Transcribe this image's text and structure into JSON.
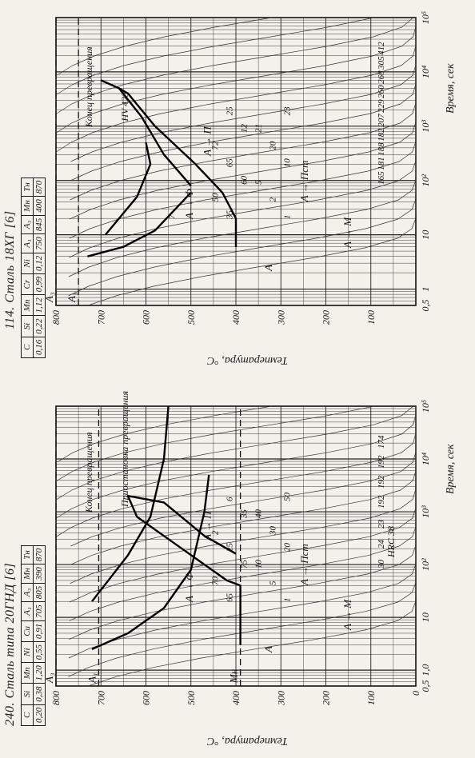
{
  "chart_data": [
    {
      "type": "line",
      "title": "240. Сталь типа 20ГНД [6]",
      "composition": {
        "headers": [
          "C",
          "Si",
          "Mn",
          "Ni",
          "Cu",
          "A₁",
          "A₃",
          "Mн",
          "Tн"
        ],
        "values": [
          "0,20",
          "0,38",
          "1,20",
          "0,55",
          "0,91",
          "705",
          "805",
          "390",
          "870"
        ]
      },
      "xlabel": "Время, сек",
      "ylabel": "Температура, °С",
      "xscale": "log",
      "xlim": [
        0.5,
        100000
      ],
      "ylim": [
        0,
        800
      ],
      "x_ticks": [
        "0,5",
        "1,0",
        "10",
        "10²",
        "10³",
        "10⁴",
        "10⁵"
      ],
      "x_tick_values": [
        0.5,
        1,
        10,
        100,
        1000,
        10000,
        100000
      ],
      "y_ticks": [
        0,
        100,
        200,
        300,
        400,
        500,
        600,
        700,
        800
      ],
      "critical_points": [
        {
          "label": "A₃",
          "y": 805
        },
        {
          "label": "A₁",
          "y": 705
        },
        {
          "label": "Mн",
          "y": 390
        }
      ],
      "field_labels": [
        "A",
        "A → Ф",
        "A → Пст",
        "A → M",
        "A → П"
      ],
      "annotations": [
        "Конец превращения",
        "Приостановка превращения",
        "HRC 38"
      ],
      "series": [
        {
          "name": "Начало превращения",
          "points": [
            [
              2.5,
              720
            ],
            [
              5,
              640
            ],
            [
              15,
              560
            ],
            [
              80,
              500
            ],
            [
              1000,
              470
            ],
            [
              5000,
              460
            ]
          ]
        },
        {
          "name": "Конец превращения",
          "points": [
            [
              20,
              720
            ],
            [
              150,
              640
            ],
            [
              800,
              590
            ],
            [
              10000,
              560
            ],
            [
              100000,
              550
            ]
          ]
        },
        {
          "name": "Граница области A → Пст",
          "points": [
            [
              10,
              390
            ],
            [
              40,
              390
            ],
            [
              50,
              420
            ],
            [
              200,
              520
            ],
            [
              800,
              620
            ],
            [
              2000,
              640
            ],
            [
              1500,
              560
            ],
            [
              350,
              470
            ],
            [
              160,
              400
            ]
          ]
        },
        {
          "name": "Mн",
          "points": [
            [
              3,
              390
            ],
            [
              10,
              390
            ]
          ]
        }
      ],
      "percent_labels": [
        "1",
        "5",
        "10",
        "20",
        "30",
        "40",
        "50",
        "65",
        "70",
        "75",
        "25",
        "2",
        "35",
        "6"
      ],
      "hardness_labels": [
        "30",
        "24",
        "23",
        "192",
        "192",
        "192",
        "174"
      ]
    },
    {
      "type": "line",
      "title": "114. Сталь 18ХГ [6]",
      "composition": {
        "headers": [
          "C",
          "Si",
          "Mn",
          "Cr",
          "Ni",
          "A₁",
          "A₃",
          "Mн",
          "Tн"
        ],
        "values": [
          "0,16",
          "0,22",
          "1,12",
          "0,99",
          "0,12",
          "750",
          "845",
          "400",
          "870"
        ]
      },
      "xlabel": "Время, сек",
      "ylabel": "Температура, °С",
      "xscale": "log",
      "xlim": [
        0.5,
        100000
      ],
      "ylim": [
        0,
        800
      ],
      "x_ticks": [
        "0,5",
        "1",
        "10",
        "10²",
        "10³",
        "10⁴",
        "10⁵"
      ],
      "x_tick_values": [
        0.5,
        1,
        10,
        100,
        1000,
        10000,
        100000
      ],
      "y_ticks": [
        100,
        200,
        300,
        400,
        500,
        600,
        700,
        800
      ],
      "critical_points": [
        {
          "label": "A₃",
          "y": 845
        },
        {
          "label": "A₁",
          "y": 750
        }
      ],
      "field_labels": [
        "A",
        "A → Ф",
        "A → Пст",
        "A → M",
        "A → П"
      ],
      "annotations": [
        "Конец превращения",
        "HV 423"
      ],
      "series": [
        {
          "name": "Начало превращения",
          "points": [
            [
              4,
              730
            ],
            [
              6,
              650
            ],
            [
              12,
              580
            ],
            [
              40,
              520
            ],
            [
              60,
              500
            ]
          ]
        },
        {
          "name": "Граница A → Ф",
          "points": [
            [
              10,
              690
            ],
            [
              50,
              620
            ],
            [
              200,
              590
            ],
            [
              500,
              600
            ]
          ]
        },
        {
          "name": "Граница области A → Пст",
          "points": [
            [
              6,
              400
            ],
            [
              20,
              400
            ],
            [
              60,
              430
            ],
            [
              200,
              490
            ],
            [
              1000,
              580
            ],
            [
              4000,
              640
            ],
            [
              5000,
              660
            ]
          ]
        },
        {
          "name": "Конец превращения",
          "points": [
            [
              80,
              500
            ],
            [
              300,
              560
            ],
            [
              1500,
              610
            ],
            [
              5000,
              660
            ],
            [
              7000,
              700
            ]
          ]
        }
      ],
      "percent_labels": [
        "1",
        "2",
        "5",
        "10",
        "20",
        "21",
        "23",
        "35",
        "50",
        "60",
        "65",
        "72",
        "12",
        "25",
        "7"
      ],
      "hardness_labels": [
        "165",
        "181",
        "188",
        "182",
        "207",
        "229",
        "260",
        "268",
        "305",
        "412"
      ]
    }
  ]
}
